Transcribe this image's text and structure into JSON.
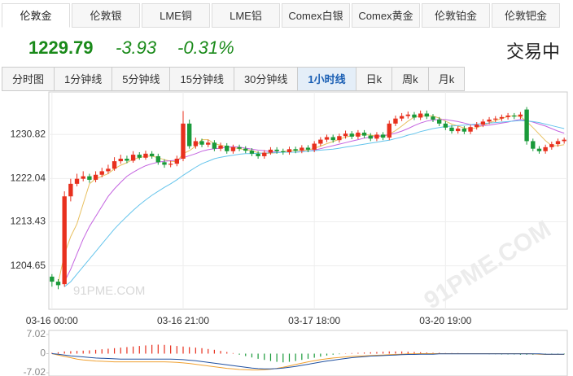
{
  "tabs": [
    {
      "label": "伦敦金",
      "active": true
    },
    {
      "label": "伦敦银",
      "active": false
    },
    {
      "label": "LME铜",
      "active": false
    },
    {
      "label": "LME铝",
      "active": false
    },
    {
      "label": "Comex白银",
      "active": false
    },
    {
      "label": "Comex黄金",
      "active": false
    },
    {
      "label": "伦敦铂金",
      "active": false
    },
    {
      "label": "伦敦钯金",
      "active": false
    }
  ],
  "quote": {
    "price": "1229.79",
    "change": "-3.93",
    "change_pct": "-0.31%",
    "status": "交易中"
  },
  "periods": [
    {
      "label": "分时图",
      "active": false
    },
    {
      "label": "1分钟线",
      "active": false
    },
    {
      "label": "5分钟线",
      "active": false
    },
    {
      "label": "15分钟线",
      "active": false
    },
    {
      "label": "30分钟线",
      "active": false
    },
    {
      "label": "1小时线",
      "active": true
    },
    {
      "label": "日k",
      "active": false
    },
    {
      "label": "周k",
      "active": false
    },
    {
      "label": "月k",
      "active": false
    }
  ],
  "chart_data": [
    {
      "type": "candlestick",
      "watermark": "91PME.COM",
      "up_color": "#e8301e",
      "down_color": "#1a9a3a",
      "categories": [
        "03-16 00:00",
        null,
        null,
        null,
        null,
        null,
        null,
        null,
        null,
        null,
        null,
        null,
        null,
        null,
        null,
        null,
        null,
        null,
        null,
        null,
        null,
        "03-16 21:00",
        null,
        null,
        null,
        null,
        null,
        null,
        null,
        null,
        null,
        null,
        null,
        null,
        null,
        null,
        null,
        null,
        null,
        null,
        null,
        null,
        "03-17 18:00",
        null,
        null,
        null,
        null,
        null,
        null,
        null,
        null,
        null,
        null,
        null,
        null,
        null,
        null,
        null,
        null,
        null,
        null,
        null,
        null,
        "03-20 19:00",
        null,
        null,
        null,
        null,
        null,
        null,
        null,
        null,
        null,
        null,
        null,
        null,
        null,
        null,
        null,
        null,
        null,
        null,
        null
      ],
      "open": [
        1202.5,
        1201.5,
        1201.0,
        1218.5,
        1221.0,
        1222.0,
        1222.5,
        1221.8,
        1222.8,
        1223.5,
        1224.0,
        1225.5,
        1226.0,
        1225.6,
        1226.8,
        1226.2,
        1227.0,
        1226.5,
        1225.3,
        1224.8,
        1225.0,
        1226.0,
        1233.0,
        1228.5,
        1229.5,
        1228.8,
        1229.2,
        1228.0,
        1228.6,
        1227.5,
        1228.3,
        1228.0,
        1227.6,
        1227.0,
        1226.5,
        1227.2,
        1227.8,
        1227.5,
        1227.3,
        1227.9,
        1227.6,
        1228.2,
        1227.8,
        1229.0,
        1229.8,
        1230.3,
        1229.7,
        1230.5,
        1231.0,
        1230.4,
        1231.2,
        1230.6,
        1230.0,
        1230.8,
        1230.2,
        1233.0,
        1234.0,
        1234.5,
        1234.8,
        1234.2,
        1235.0,
        1234.4,
        1233.8,
        1233.0,
        1232.2,
        1231.5,
        1232.0,
        1231.4,
        1232.3,
        1232.8,
        1233.4,
        1233.8,
        1234.0,
        1234.3,
        1234.6,
        1234.4,
        1235.8,
        1229.5,
        1228.0,
        1227.5,
        1228.3,
        1228.9,
        1229.5
      ],
      "high": [
        1203.0,
        1202.0,
        1219.5,
        1222.0,
        1223.0,
        1223.5,
        1223.0,
        1223.5,
        1224.2,
        1224.8,
        1226.3,
        1226.8,
        1226.6,
        1227.5,
        1227.3,
        1227.6,
        1227.5,
        1227.0,
        1225.9,
        1225.6,
        1226.6,
        1235.5,
        1233.8,
        1230.2,
        1230.0,
        1229.8,
        1229.7,
        1229.2,
        1229.1,
        1228.8,
        1228.8,
        1228.5,
        1228.1,
        1227.5,
        1227.7,
        1228.3,
        1228.3,
        1228.0,
        1228.4,
        1228.4,
        1228.7,
        1228.7,
        1229.5,
        1230.3,
        1230.8,
        1230.8,
        1231.0,
        1231.6,
        1231.5,
        1231.7,
        1231.7,
        1231.1,
        1231.3,
        1231.3,
        1233.6,
        1234.6,
        1235.1,
        1235.4,
        1235.3,
        1235.6,
        1235.6,
        1234.9,
        1234.3,
        1233.5,
        1232.7,
        1232.5,
        1232.5,
        1232.8,
        1233.3,
        1233.9,
        1234.3,
        1234.5,
        1234.8,
        1235.1,
        1235.1,
        1235.3,
        1236.3,
        1230.0,
        1228.5,
        1228.8,
        1229.4,
        1230.0,
        1230.2
      ],
      "low": [
        1200.5,
        1200.0,
        1200.5,
        1217.5,
        1220.5,
        1221.5,
        1221.2,
        1221.3,
        1222.3,
        1223.0,
        1223.6,
        1225.0,
        1225.1,
        1225.2,
        1225.8,
        1225.8,
        1226.0,
        1224.8,
        1224.2,
        1224.3,
        1224.5,
        1225.5,
        1228.0,
        1228.0,
        1228.3,
        1228.3,
        1227.5,
        1227.5,
        1227.0,
        1227.0,
        1227.5,
        1227.1,
        1226.5,
        1226.0,
        1226.0,
        1226.8,
        1227.0,
        1226.8,
        1226.8,
        1227.1,
        1227.1,
        1227.3,
        1227.3,
        1228.5,
        1229.3,
        1229.2,
        1229.2,
        1230.0,
        1229.9,
        1229.9,
        1230.1,
        1229.5,
        1229.5,
        1229.7,
        1229.7,
        1232.5,
        1233.5,
        1234.0,
        1233.7,
        1233.7,
        1233.9,
        1233.3,
        1232.5,
        1231.7,
        1231.0,
        1231.0,
        1230.9,
        1230.9,
        1231.8,
        1232.3,
        1232.9,
        1233.3,
        1233.5,
        1233.8,
        1233.9,
        1233.9,
        1228.8,
        1227.5,
        1227.0,
        1227.0,
        1227.8,
        1228.4,
        1229.0
      ],
      "close": [
        1201.5,
        1200.8,
        1218.5,
        1221.0,
        1222.0,
        1222.5,
        1221.8,
        1222.8,
        1223.5,
        1224.0,
        1225.5,
        1226.0,
        1225.6,
        1226.8,
        1226.2,
        1227.0,
        1226.5,
        1225.3,
        1224.8,
        1225.0,
        1226.0,
        1233.0,
        1228.5,
        1229.5,
        1228.8,
        1229.2,
        1228.0,
        1228.6,
        1227.5,
        1228.3,
        1228.0,
        1227.6,
        1227.0,
        1226.5,
        1227.2,
        1227.8,
        1227.5,
        1227.3,
        1227.9,
        1227.6,
        1228.2,
        1227.8,
        1229.0,
        1229.8,
        1230.3,
        1229.7,
        1230.5,
        1231.0,
        1230.4,
        1231.2,
        1230.6,
        1230.0,
        1230.8,
        1230.2,
        1233.0,
        1234.0,
        1234.5,
        1234.8,
        1234.2,
        1235.0,
        1234.4,
        1233.8,
        1233.0,
        1232.2,
        1231.5,
        1232.0,
        1231.4,
        1232.3,
        1232.8,
        1233.4,
        1233.8,
        1234.0,
        1234.3,
        1234.6,
        1234.4,
        1234.8,
        1229.5,
        1228.0,
        1227.5,
        1228.3,
        1228.9,
        1229.5,
        1229.79
      ],
      "lines": [
        {
          "color": "#e8c060",
          "values": [
            null,
            1201.2,
            1207,
            1210.5,
            1213,
            1217,
            1221,
            1222,
            1222.5,
            1223,
            1224,
            1224.7,
            1225.2,
            1225.9,
            1226.2,
            1226.5,
            1226.5,
            1226.2,
            1225.8,
            1225.5,
            1225.4,
            1227,
            1227.6,
            1228.5,
            1229.8,
            1229.8,
            1229,
            1228.7,
            1228.4,
            1228.2,
            1228,
            1227.8,
            1227.6,
            1227.2,
            1227,
            1227.1,
            1227.2,
            1227.4,
            1227.6,
            1227.6,
            1227.7,
            1227.7,
            1228.1,
            1228.5,
            1229,
            1229.4,
            1229.9,
            1230.3,
            1230.6,
            1230.8,
            1230.8,
            1230.7,
            1230.5,
            1230.4,
            1230.9,
            1231.6,
            1232.5,
            1233.5,
            1234.3,
            1234.5,
            1234.6,
            1234.5,
            1234.1,
            1233.5,
            1232.9,
            1232.5,
            1232.1,
            1231.9,
            1232.2,
            1232.6,
            1233.1,
            1233.6,
            1234,
            1234.4,
            1234.6,
            1234.4,
            1233.4,
            1232.2,
            1230.9,
            1229.6,
            1228.6,
            1228.6,
            1228.8
          ]
        },
        {
          "color": "#c464e0",
          "values": [
            null,
            null,
            1201.5,
            1204,
            1207,
            1210,
            1212.5,
            1214.5,
            1216.5,
            1218.5,
            1220,
            1221.3,
            1222.5,
            1223.3,
            1224,
            1224.6,
            1225,
            1225.3,
            1225.5,
            1225.6,
            1225.7,
            1226.2,
            1226.6,
            1227,
            1227.5,
            1227.8,
            1228,
            1228.1,
            1228.3,
            1228.4,
            1228.3,
            1228.1,
            1227.9,
            1227.7,
            1227.6,
            1227.4,
            1227.3,
            1227.3,
            1227.3,
            1227.3,
            1227.4,
            1227.5,
            1227.7,
            1228,
            1228.3,
            1228.6,
            1228.9,
            1229.2,
            1229.5,
            1229.8,
            1230.1,
            1230.3,
            1230.5,
            1230.6,
            1230.8,
            1231.1,
            1231.5,
            1232,
            1232.6,
            1233.1,
            1233.5,
            1233.7,
            1233.8,
            1233.8,
            1233.6,
            1233.4,
            1233.1,
            1232.8,
            1232.6,
            1232.6,
            1232.7,
            1232.9,
            1233.1,
            1233.3,
            1233.6,
            1233.8,
            1233.6,
            1233.3,
            1232.9,
            1232.5,
            1232,
            1231.5,
            1231.1
          ]
        },
        {
          "color": "#64c4ec",
          "values": [
            null,
            null,
            1200.5,
            1201.5,
            1203,
            1204.5,
            1206,
            1207.5,
            1209,
            1210.5,
            1212,
            1213.3,
            1214.5,
            1215.7,
            1216.8,
            1217.8,
            1218.7,
            1219.5,
            1220.3,
            1221,
            1221.8,
            1222.7,
            1223.5,
            1224.3,
            1225,
            1225.5,
            1226,
            1226.3,
            1226.5,
            1226.7,
            1226.9,
            1227,
            1227,
            1227.1,
            1227.1,
            1227.2,
            1227.2,
            1227.3,
            1227.3,
            1227.3,
            1227.4,
            1227.5,
            1227.6,
            1227.7,
            1227.8,
            1227.9,
            1228.1,
            1228.3,
            1228.5,
            1228.7,
            1228.9,
            1229.1,
            1229.3,
            1229.5,
            1229.7,
            1230,
            1230.3,
            1230.7,
            1231,
            1231.4,
            1231.7,
            1232,
            1232.2,
            1232.4,
            1232.5,
            1232.6,
            1232.7,
            1232.8,
            1232.9,
            1233,
            1233.1,
            1233.2,
            1233.3,
            1233.4,
            1233.5,
            1233.6,
            1233.5,
            1233.4,
            1233.2,
            1232.9,
            1232.6,
            1232.3,
            1232
          ]
        }
      ],
      "ylim": [
        1196,
        1239.3
      ],
      "yticks": [
        1204.65,
        1213.43,
        1222.04,
        1230.82
      ],
      "grid": true
    },
    {
      "type": "macd",
      "up_color": "#e8301e",
      "down_color": "#1a9a3a",
      "values": [
        0.3,
        0.5,
        0.8,
        0.9,
        1,
        1.1,
        1.2,
        1.4,
        1.6,
        1.8,
        2,
        2.2,
        2.4,
        2.6,
        2.8,
        3,
        3.2,
        3.3,
        3.2,
        3,
        2.8,
        2.6,
        2.4,
        2.2,
        2,
        1.7,
        1.4,
        1,
        0.6,
        0.2,
        -0.4,
        -0.9,
        -1.4,
        -1.9,
        -2.3,
        -2.7,
        -3,
        -3.2,
        -3,
        -2.7,
        -2.3,
        -1.9,
        -1.5,
        -1.1,
        -0.7,
        -0.4,
        -0.2,
        0.1,
        0.2,
        0.3,
        0.4,
        0.5,
        0.6,
        0.7,
        0.8,
        0.8,
        0.8,
        0.7,
        0.6,
        0.5,
        0.4,
        0.3,
        0.3,
        0.2,
        0.2,
        0.2,
        0.1,
        0.1,
        -0.1,
        -0.1,
        -0.2,
        -0.2,
        -0.3,
        -0.3,
        -0.3,
        -0.4,
        -0.4,
        -0.4,
        -0.3,
        -0.3,
        -0.3,
        -0.2,
        -0.2
      ],
      "lines": [
        {
          "color": "#f0a030",
          "values": [
            0,
            -0.5,
            -1,
            -1.5,
            -2,
            -2.3,
            -2.5,
            -2.7,
            -2.8,
            -2.9,
            -3,
            -3,
            -3,
            -3,
            -3,
            -3,
            -3,
            -3,
            -3,
            -3.1,
            -3.2,
            -3.4,
            -3.6,
            -3.9,
            -4.2,
            -4.5,
            -4.8,
            -5.1,
            -5.4,
            -5.6,
            -5.8,
            -5.9,
            -6,
            -6,
            -5.9,
            -5.7,
            -5.4,
            -5,
            -4.5,
            -4,
            -3.5,
            -3,
            -2.6,
            -2.2,
            -1.9,
            -1.6,
            -1.4,
            -1.2,
            -1,
            -0.9,
            -0.8,
            -0.7,
            -0.6,
            -0.5,
            -0.4,
            -0.3,
            -0.2,
            -0.1,
            -0.1,
            0,
            0,
            0,
            0,
            0,
            0,
            0,
            0,
            0,
            0,
            0,
            0,
            0,
            0,
            0,
            0,
            0,
            0,
            -0.1,
            -0.2,
            -0.3,
            -0.3,
            -0.3,
            -0.3
          ]
        },
        {
          "color": "#2050a0",
          "values": [
            0,
            -0.2,
            -0.5,
            -0.8,
            -1,
            -1.2,
            -1.4,
            -1.6,
            -1.7,
            -1.8,
            -1.9,
            -2,
            -2,
            -2,
            -2,
            -2,
            -2,
            -2,
            -2,
            -2,
            -2.1,
            -2.2,
            -2.4,
            -2.6,
            -2.9,
            -3.2,
            -3.5,
            -3.8,
            -4.1,
            -4.4,
            -4.7,
            -5,
            -5.3,
            -5.5,
            -5.6,
            -5.6,
            -5.5,
            -5.3,
            -5,
            -4.7,
            -4.3,
            -3.9,
            -3.5,
            -3.1,
            -2.7,
            -2.4,
            -2.1,
            -1.8,
            -1.5,
            -1.3,
            -1.1,
            -0.9,
            -0.8,
            -0.7,
            -0.6,
            -0.5,
            -0.4,
            -0.3,
            -0.3,
            -0.2,
            -0.2,
            -0.2,
            -0.1,
            -0.1,
            -0.1,
            -0.1,
            -0.1,
            -0.1,
            -0.1,
            -0.1,
            -0.1,
            -0.1,
            -0.1,
            -0.1,
            -0.1,
            -0.1,
            -0.1,
            -0.1,
            -0.1,
            -0.2,
            -0.2,
            -0.2,
            -0.2
          ]
        }
      ],
      "ylim": [
        -8.2,
        8.5
      ],
      "yticks": [
        7.02,
        0,
        -7.02
      ]
    }
  ]
}
